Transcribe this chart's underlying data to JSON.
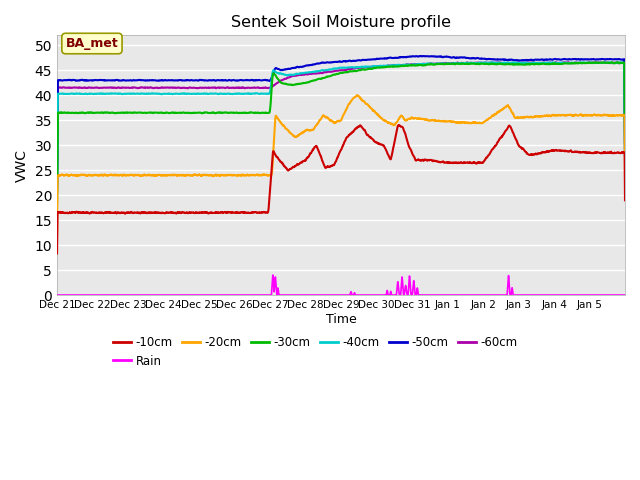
{
  "title": "Sentek Soil Moisture profile",
  "xlabel": "Time",
  "ylabel": "VWC",
  "ylim": [
    0,
    52
  ],
  "yticks": [
    0,
    5,
    10,
    15,
    20,
    25,
    30,
    35,
    40,
    45,
    50
  ],
  "plot_bg_color": "#e8e8e8",
  "legend_label": "BA_met",
  "series_order": [
    "-10cm",
    "-20cm",
    "-30cm",
    "-40cm",
    "-50cm",
    "-60cm",
    "Rain"
  ],
  "series": {
    "-10cm": {
      "color": "#cc0000",
      "lw": 1.5
    },
    "-20cm": {
      "color": "#ffa500",
      "lw": 1.5
    },
    "-30cm": {
      "color": "#00bb00",
      "lw": 1.5
    },
    "-40cm": {
      "color": "#00cccc",
      "lw": 1.5
    },
    "-50cm": {
      "color": "#0000cc",
      "lw": 1.5
    },
    "-60cm": {
      "color": "#aa00aa",
      "lw": 1.5
    },
    "Rain": {
      "color": "#ff00ff",
      "lw": 1.2
    }
  },
  "x_tick_labels": [
    "Dec 21",
    "Dec 22",
    "Dec 23",
    "Dec 24",
    "Dec 25",
    "Dec 26",
    "Dec 27",
    "Dec 28",
    "Dec 29",
    "Dec 30",
    "Dec 31",
    "Jan 1",
    "Jan 2",
    "Jan 3",
    "Jan 4",
    "Jan 5"
  ],
  "n_days": 16,
  "step_day": 6.0,
  "legend_ncol": 6,
  "legend_row2": [
    "Rain"
  ]
}
